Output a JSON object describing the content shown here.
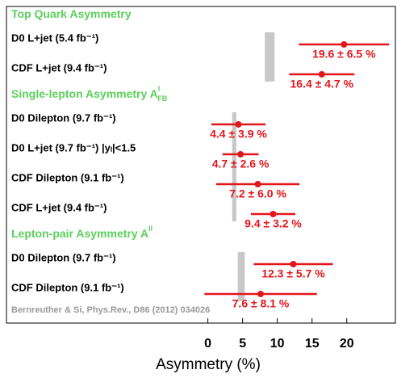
{
  "chart_data": {
    "type": "errorbar",
    "x_label": "Asymmetry (%)",
    "note": "Bernreuther & Si, Phys.Rev., D86 (2012) 034026",
    "xlim": [
      -29,
      27
    ],
    "xticks": [
      0,
      5,
      10,
      15,
      20
    ],
    "color": "#e3161c",
    "theory_color": "#c8c8c8",
    "sections": [
      {
        "title": "Top Quark Asymmetry",
        "theory": {
          "value": 8.9,
          "error": 0.7
        },
        "rows": [
          {
            "label": "D0 L+jet (5.4 fb⁻¹)",
            "value": 19.6,
            "error": 6.5,
            "value_label": "19.6 ± 6.5 %"
          },
          {
            "label": "CDF L+jet (9.4 fb⁻¹)",
            "value": 16.4,
            "error": 4.7,
            "value_label": "16.4 ± 4.7 %"
          }
        ]
      },
      {
        "title": "Single-lepton Asymmetry A",
        "title_sup": "l",
        "title_sub": "FB",
        "theory": {
          "value": 3.8,
          "error": 0.3
        },
        "rows": [
          {
            "label": "D0 Dilepton (9.7 fb⁻¹)",
            "value": 4.4,
            "error": 3.9,
            "value_label": "4.4 ± 3.9 %"
          },
          {
            "label": "D0 L+jet (9.7 fb⁻¹) |yₗ|<1.5",
            "value": 4.7,
            "error": 2.6,
            "value_label": "4.7 ± 2.6 %"
          },
          {
            "label": "CDF Dilepton (9.1 fb⁻¹)",
            "value": 7.2,
            "error": 6.0,
            "value_label": "7.2 ± 6.0 %"
          },
          {
            "label": "CDF L+jet (9.4 fb⁻¹)",
            "value": 9.4,
            "error": 3.2,
            "value_label": "9.4 ± 3.2 %"
          }
        ]
      },
      {
        "title": "Lepton-pair Asymmetry A",
        "title_sup": "ll",
        "theory": {
          "value": 4.8,
          "error": 0.5
        },
        "rows": [
          {
            "label": "D0 Dilepton (9.7 fb⁻¹)",
            "value": 12.3,
            "error": 5.7,
            "value_label": "12.3 ± 5.7 %"
          },
          {
            "label": "CDF Dilepton (9.1 fb⁻¹)",
            "value": 7.6,
            "error": 8.1,
            "value_label": "7.6 ± 8.1 %"
          }
        ]
      }
    ]
  }
}
